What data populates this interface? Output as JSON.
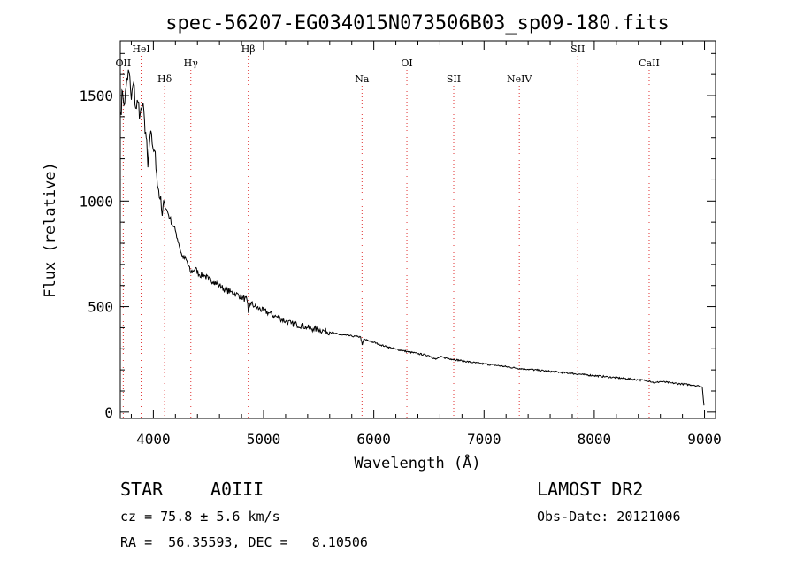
{
  "chart_data": {
    "type": "line",
    "title": "spec-56207-EG034015N073506B03_sp09-180.fits",
    "xlabel": "Wavelength (Å)",
    "ylabel": "Flux (relative)",
    "xlim": [
      3700,
      9100
    ],
    "ylim": [
      -30,
      1760
    ],
    "xticks": [
      4000,
      5000,
      6000,
      7000,
      8000,
      9000
    ],
    "yticks": [
      0,
      500,
      1000,
      1500
    ],
    "grid": false,
    "series": [
      {
        "color": "#000000",
        "x": [
          3705,
          3720,
          3740,
          3760,
          3780,
          3800,
          3820,
          3840,
          3860,
          3880,
          3900,
          3920,
          3935,
          3950,
          3970,
          3990,
          4010,
          4030,
          4060,
          4080,
          4100,
          4120,
          4150,
          4180,
          4200,
          4230,
          4260,
          4300,
          4340,
          4380,
          4420,
          4460,
          4500,
          4550,
          4600,
          4650,
          4700,
          4750,
          4800,
          4850,
          4862,
          4880,
          4920,
          4960,
          5000,
          5050,
          5100,
          5150,
          5200,
          5250,
          5300,
          5350,
          5400,
          5450,
          5500,
          5550,
          5600,
          5650,
          5700,
          5750,
          5800,
          5850,
          5880,
          5895,
          5910,
          5950,
          6000,
          6100,
          6200,
          6300,
          6400,
          6500,
          6563,
          6600,
          6700,
          6800,
          6900,
          7000,
          7100,
          7200,
          7300,
          7400,
          7500,
          7600,
          7700,
          7800,
          7900,
          8000,
          8100,
          8200,
          8300,
          8400,
          8500,
          8550,
          8600,
          8700,
          8800,
          8900,
          8950,
          8980,
          8995
        ],
        "values": [
          1420,
          1520,
          1460,
          1580,
          1610,
          1480,
          1560,
          1440,
          1470,
          1410,
          1450,
          1380,
          1300,
          1160,
          1310,
          1270,
          1240,
          1130,
          1010,
          930,
          990,
          960,
          920,
          880,
          860,
          800,
          740,
          720,
          660,
          680,
          650,
          650,
          630,
          620,
          600,
          580,
          570,
          560,
          545,
          530,
          470,
          520,
          500,
          490,
          480,
          470,
          455,
          445,
          430,
          420,
          415,
          410,
          400,
          395,
          390,
          385,
          380,
          372,
          366,
          364,
          360,
          358,
          356,
          318,
          345,
          338,
          330,
          312,
          298,
          287,
          277,
          268,
          250,
          262,
          252,
          243,
          235,
          228,
          222,
          215,
          208,
          203,
          198,
          193,
          188,
          183,
          178,
          173,
          168,
          163,
          158,
          153,
          148,
          138,
          145,
          138,
          133,
          128,
          123,
          118,
          32
        ]
      }
    ],
    "lines": [
      {
        "name": "OII",
        "x": 3727
      },
      {
        "name": "HeI",
        "x": 3889
      },
      {
        "name": "Hδ",
        "x": 4102
      },
      {
        "name": "Hγ",
        "x": 4340
      },
      {
        "name": "Hβ",
        "x": 4861
      },
      {
        "name": "Na",
        "x": 5893
      },
      {
        "name": "OI",
        "x": 6300
      },
      {
        "name": "SII",
        "x": 6725
      },
      {
        "name": "NeIV",
        "x": 7320
      },
      {
        "name": "SII",
        "x": 7850
      },
      {
        "name": "CaII",
        "x": 8498
      }
    ]
  },
  "info": {
    "object_type": "STAR",
    "spectral_class": "A0III",
    "survey": "LAMOST DR2",
    "cz": "cz = 75.8 ± 5.6 km/s",
    "obs_date": "Obs-Date: 20121006",
    "radec": "RA =  56.35593, DEC =   8.10506"
  }
}
